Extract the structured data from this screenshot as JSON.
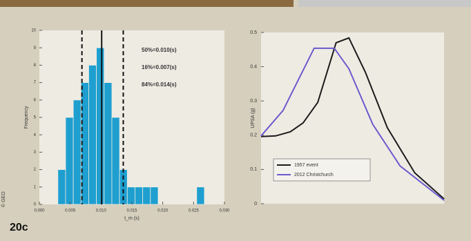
{
  "figure_label": "20c",
  "credit": "© GEO",
  "chart_data": [
    {
      "type": "histogram",
      "xlabel": "t_m (s)",
      "ylabel": "Frequency",
      "bins": [
        0.003,
        0.00425,
        0.0055,
        0.00675,
        0.008,
        0.00925,
        0.0105,
        0.01175,
        0.013,
        0.01425,
        0.0155,
        0.01675,
        0.018,
        0.01925,
        0.0205,
        0.02175,
        0.023,
        0.02425,
        0.0255,
        0.02675
      ],
      "values": [
        2,
        5,
        6,
        7,
        8,
        9,
        7,
        5,
        2,
        1,
        1,
        1,
        1,
        0,
        0,
        0,
        0,
        0,
        1
      ],
      "color": "#1e9fd0",
      "xlim": [
        0,
        0.03
      ],
      "xticks": [
        {
          "value": 0,
          "label": "0.000"
        },
        0.005,
        {
          "value": 0.01,
          "label": "0.010"
        },
        0.015,
        {
          "value": 0.02,
          "label": "0.020"
        },
        0.025,
        {
          "value": 0.03,
          "label": "0.030"
        }
      ],
      "ylim": [
        0,
        10
      ],
      "yticks": [
        0,
        1,
        2,
        3,
        4,
        5,
        6,
        7,
        8,
        9,
        10
      ],
      "vlines": [
        {
          "value": 0.0101,
          "style": "solid",
          "label": "50%=0.010(s)"
        },
        {
          "value": 0.0069,
          "style": "dashed",
          "label": "16%=0.007(s)"
        },
        {
          "value": 0.0136,
          "style": "dashed",
          "label": "84%=0.014(s)"
        }
      ]
    },
    {
      "type": "line",
      "ylabel": "UPSA (g)",
      "xlim": [
        0,
        1
      ],
      "ylim": [
        0,
        0.5
      ],
      "yticks": [
        0,
        0.1,
        0.2,
        0.3,
        0.4,
        0.5
      ],
      "series": [
        {
          "name": "1957 event",
          "color": "#1a1a1a",
          "x": [
            0,
            0.08,
            0.16,
            0.23,
            0.31,
            0.41,
            0.48,
            0.57,
            0.69,
            0.84,
            1
          ],
          "values": [
            0.196,
            0.198,
            0.21,
            0.236,
            0.296,
            0.47,
            0.484,
            0.384,
            0.222,
            0.09,
            0.014
          ]
        },
        {
          "name": "2012 Christchurch",
          "color": "#6a5acd",
          "x": [
            0,
            0.12,
            0.29,
            0.4,
            0.48,
            0.61,
            0.76,
            1
          ],
          "values": [
            0.198,
            0.272,
            0.454,
            0.454,
            0.394,
            0.232,
            0.11,
            0.01
          ]
        }
      ],
      "legend": "lower left"
    }
  ]
}
